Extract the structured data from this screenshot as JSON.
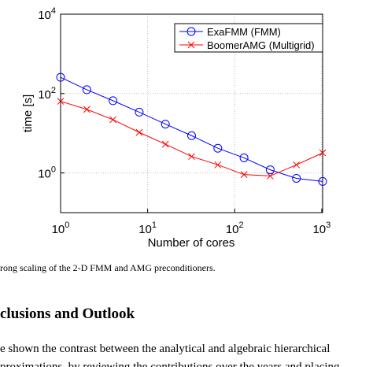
{
  "chart_data": {
    "type": "line",
    "x_label": "Number of cores",
    "y_label": "time [s]",
    "x": [
      1,
      2,
      4,
      8,
      16,
      32,
      64,
      128,
      256,
      512,
      1024
    ],
    "series": [
      {
        "name": "ExaFMM (FMM)",
        "color": "#0000ff",
        "marker": "circle",
        "values": [
          257,
          125,
          66,
          34,
          17,
          8.7,
          4.2,
          2.4,
          1.2,
          0.73,
          0.61
        ]
      },
      {
        "name": "BoomerAMG (Multigrid)",
        "color": "#ff0000",
        "marker": "x",
        "values": [
          64,
          40,
          22,
          10.5,
          5.3,
          2.6,
          1.6,
          0.91,
          0.84,
          1.6,
          3.2
        ]
      }
    ],
    "xlim": [
      1,
      1024
    ],
    "ylim": [
      0.1,
      10000
    ],
    "log_x": true,
    "log_y": true,
    "grid": true,
    "legend": "upper right",
    "xticks": [
      {
        "value": 1,
        "label": "10",
        "exponent": "0"
      },
      {
        "value": 10,
        "label": "10",
        "exponent": "1"
      },
      {
        "value": 100,
        "label": "10",
        "exponent": "2"
      },
      {
        "value": 1000,
        "label": "10",
        "exponent": "3"
      }
    ],
    "yticks": [
      {
        "value": 1,
        "label": "10",
        "exponent": "0"
      },
      {
        "value": 100,
        "label": "10",
        "exponent": "2"
      },
      {
        "value": 10000,
        "label": "10",
        "exponent": "4"
      }
    ]
  },
  "caption": "rong scaling of the 2-D FMM and AMG preconditioners.",
  "heading": "clusions and Outlook",
  "paragraph": [
    "e shown the contrast between the analytical and algebraic hierarchical",
    "proximations, by reviewing the contributions over the years and placing"
  ]
}
